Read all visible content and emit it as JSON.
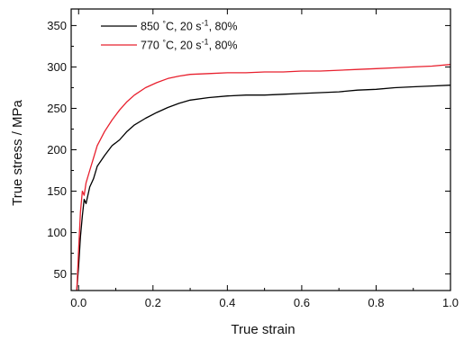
{
  "chart_data": {
    "type": "line",
    "xlabel": "True strain",
    "ylabel": "True stress / MPa",
    "xlim": [
      -0.02,
      1.0
    ],
    "ylim": [
      30,
      370
    ],
    "x_ticks": [
      0.0,
      0.2,
      0.4,
      0.6,
      0.8,
      1.0
    ],
    "x_tick_labels": [
      "0.0",
      "0.2",
      "0.4",
      "0.6",
      "0.8",
      "1.0"
    ],
    "y_ticks": [
      50,
      100,
      150,
      200,
      250,
      300,
      350
    ],
    "y_tick_labels": [
      "50",
      "100",
      "150",
      "200",
      "250",
      "300",
      "350"
    ],
    "grid": false,
    "legend_position": "top-left",
    "series": [
      {
        "name": "850 °C, 20 s⁻¹, 80%",
        "legend_parts": [
          "850 ",
          "°",
          "C, 20 s",
          "-1",
          ", 80%"
        ],
        "color": "#000000",
        "x": [
          -0.005,
          0.0,
          0.005,
          0.01,
          0.015,
          0.02,
          0.03,
          0.04,
          0.05,
          0.07,
          0.09,
          0.11,
          0.13,
          0.15,
          0.18,
          0.21,
          0.24,
          0.27,
          0.3,
          0.35,
          0.4,
          0.45,
          0.5,
          0.55,
          0.6,
          0.65,
          0.7,
          0.75,
          0.8,
          0.85,
          0.9,
          0.95,
          1.0
        ],
        "y": [
          30,
          60,
          95,
          120,
          140,
          135,
          155,
          165,
          180,
          193,
          205,
          212,
          222,
          230,
          238,
          245,
          251,
          256,
          260,
          263,
          265,
          266,
          266,
          267,
          268,
          269,
          270,
          272,
          273,
          275,
          276,
          277,
          278
        ]
      },
      {
        "name": "770 °C, 20 s⁻¹, 80%",
        "legend_parts": [
          "770 ",
          "°",
          "C, 20 s",
          "-1",
          ", 80%"
        ],
        "color": "#e8202e",
        "x": [
          -0.005,
          0.0,
          0.005,
          0.01,
          0.015,
          0.02,
          0.03,
          0.04,
          0.05,
          0.07,
          0.09,
          0.11,
          0.13,
          0.15,
          0.18,
          0.21,
          0.24,
          0.27,
          0.3,
          0.35,
          0.4,
          0.45,
          0.5,
          0.55,
          0.6,
          0.65,
          0.7,
          0.75,
          0.8,
          0.85,
          0.9,
          0.95,
          1.0
        ],
        "y": [
          30,
          80,
          125,
          150,
          145,
          160,
          175,
          190,
          205,
          222,
          236,
          248,
          258,
          266,
          275,
          281,
          286,
          289,
          291,
          292,
          293,
          293,
          294,
          294,
          295,
          295,
          296,
          297,
          298,
          299,
          300,
          301,
          303
        ]
      }
    ]
  }
}
